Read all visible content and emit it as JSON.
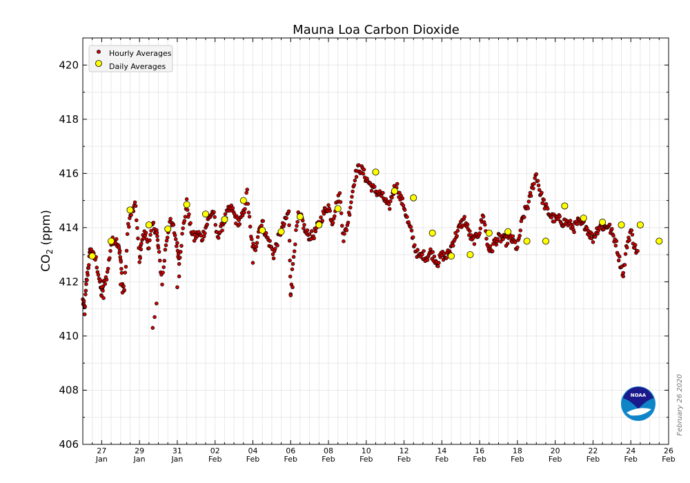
{
  "chart_data": {
    "type": "scatter",
    "title": "Mauna Loa Carbon Dioxide",
    "ylabel_main": "CO",
    "ylabel_sub": "2",
    "ylabel_unit": " (ppm)",
    "ylim": [
      406,
      421
    ],
    "yticks": [
      "406",
      "408",
      "410",
      "412",
      "414",
      "416",
      "418",
      "420"
    ],
    "xlim": [
      0,
      31
    ],
    "xticks": [
      {
        "x": 1,
        "day": "27",
        "month": "Jan"
      },
      {
        "x": 3,
        "day": "29",
        "month": "Jan"
      },
      {
        "x": 5,
        "day": "31",
        "month": "Jan"
      },
      {
        "x": 7,
        "day": "02",
        "month": "Feb"
      },
      {
        "x": 9,
        "day": "04",
        "month": "Feb"
      },
      {
        "x": 11,
        "day": "06",
        "month": "Feb"
      },
      {
        "x": 13,
        "day": "08",
        "month": "Feb"
      },
      {
        "x": 15,
        "day": "10",
        "month": "Feb"
      },
      {
        "x": 17,
        "day": "12",
        "month": "Feb"
      },
      {
        "x": 19,
        "day": "14",
        "month": "Feb"
      },
      {
        "x": 21,
        "day": "16",
        "month": "Feb"
      },
      {
        "x": 23,
        "day": "18",
        "month": "Feb"
      },
      {
        "x": 25,
        "day": "20",
        "month": "Feb"
      },
      {
        "x": 27,
        "day": "22",
        "month": "Feb"
      },
      {
        "x": 29,
        "day": "24",
        "month": "Feb"
      },
      {
        "x": 31,
        "day": "26",
        "month": "Feb"
      }
    ],
    "grid": true,
    "legend_position": "top-left",
    "date_stamp": "February 26 2020",
    "logo_text": "NOAA",
    "colors": {
      "hourly_fill": "#cc0000",
      "daily_fill": "#ffff00",
      "marker_edge": "#000000",
      "grid": "#e8e8e8",
      "logo_outer": "#0f85c7",
      "logo_inner": "#1a1a8c"
    },
    "series": [
      {
        "name": "Hourly Averages",
        "key_points": [
          [
            0.0,
            411.3
          ],
          [
            0.1,
            411.0
          ],
          [
            0.2,
            412.0
          ],
          [
            0.3,
            412.6
          ],
          [
            0.4,
            413.2
          ],
          [
            0.5,
            413.0
          ],
          [
            0.7,
            412.8
          ],
          [
            0.9,
            412.0
          ],
          [
            1.0,
            411.5
          ],
          [
            1.1,
            411.9
          ],
          [
            1.3,
            412.3
          ],
          [
            1.5,
            413.4
          ],
          [
            1.7,
            413.6
          ],
          [
            1.9,
            413.4
          ],
          [
            2.0,
            412.8
          ],
          [
            2.1,
            411.9
          ],
          [
            2.2,
            411.7
          ],
          [
            2.4,
            414.1
          ],
          [
            2.6,
            414.6
          ],
          [
            2.8,
            414.8
          ],
          [
            3.0,
            412.7
          ],
          [
            3.1,
            413.5
          ],
          [
            3.3,
            413.8
          ],
          [
            3.5,
            413.3
          ],
          [
            3.7,
            414.1
          ],
          [
            3.9,
            413.9
          ],
          [
            4.0,
            413.2
          ],
          [
            4.2,
            412.0
          ],
          [
            4.4,
            413.4
          ],
          [
            4.6,
            414.2
          ],
          [
            4.8,
            414.0
          ],
          [
            5.0,
            413.3
          ],
          [
            5.1,
            412.8
          ],
          [
            5.3,
            413.9
          ],
          [
            5.5,
            414.9
          ],
          [
            5.7,
            414.0
          ],
          [
            5.9,
            413.6
          ],
          [
            6.1,
            413.8
          ],
          [
            6.3,
            413.6
          ],
          [
            6.5,
            414.0
          ],
          [
            6.7,
            414.4
          ],
          [
            6.9,
            414.6
          ],
          [
            7.1,
            413.7
          ],
          [
            7.3,
            413.9
          ],
          [
            7.5,
            414.3
          ],
          [
            7.7,
            414.6
          ],
          [
            7.9,
            414.7
          ],
          [
            8.1,
            414.3
          ],
          [
            8.3,
            414.2
          ],
          [
            8.5,
            414.5
          ],
          [
            8.7,
            415.3
          ],
          [
            8.9,
            413.6
          ],
          [
            9.1,
            413.1
          ],
          [
            9.3,
            413.9
          ],
          [
            9.5,
            414.2
          ],
          [
            9.7,
            413.7
          ],
          [
            9.9,
            413.4
          ],
          [
            10.1,
            413.0
          ],
          [
            10.3,
            413.5
          ],
          [
            10.5,
            413.9
          ],
          [
            10.7,
            414.2
          ],
          [
            10.9,
            414.6
          ],
          [
            11.0,
            411.7
          ],
          [
            11.2,
            413.3
          ],
          [
            11.4,
            414.4
          ],
          [
            11.6,
            414.3
          ],
          [
            11.8,
            413.8
          ],
          [
            12.0,
            413.7
          ],
          [
            12.2,
            413.7
          ],
          [
            12.4,
            414.0
          ],
          [
            12.6,
            414.3
          ],
          [
            12.8,
            414.6
          ],
          [
            13.0,
            414.8
          ],
          [
            13.2,
            414.2
          ],
          [
            13.4,
            414.8
          ],
          [
            13.6,
            415.2
          ],
          [
            13.8,
            413.6
          ],
          [
            14.0,
            414.1
          ],
          [
            14.2,
            415.0
          ],
          [
            14.4,
            415.9
          ],
          [
            14.6,
            416.2
          ],
          [
            14.8,
            416.1
          ],
          [
            15.0,
            415.8
          ],
          [
            15.2,
            415.6
          ],
          [
            15.4,
            415.4
          ],
          [
            15.6,
            415.3
          ],
          [
            15.8,
            415.2
          ],
          [
            16.0,
            415.0
          ],
          [
            16.2,
            414.7
          ],
          [
            16.4,
            415.3
          ],
          [
            16.6,
            415.6
          ],
          [
            16.8,
            415.1
          ],
          [
            17.0,
            414.8
          ],
          [
            17.2,
            414.2
          ],
          [
            17.4,
            413.8
          ],
          [
            17.6,
            413.2
          ],
          [
            17.8,
            412.9
          ],
          [
            18.0,
            413.0
          ],
          [
            18.2,
            412.9
          ],
          [
            18.4,
            413.1
          ],
          [
            18.6,
            412.9
          ],
          [
            18.8,
            412.7
          ],
          [
            19.0,
            413.0
          ],
          [
            19.2,
            412.9
          ],
          [
            19.4,
            413.1
          ],
          [
            19.6,
            413.5
          ],
          [
            19.8,
            413.8
          ],
          [
            20.0,
            414.1
          ],
          [
            20.2,
            414.3
          ],
          [
            20.4,
            413.9
          ],
          [
            20.6,
            413.5
          ],
          [
            20.8,
            413.6
          ],
          [
            21.0,
            413.9
          ],
          [
            21.2,
            414.5
          ],
          [
            21.4,
            413.4
          ],
          [
            21.6,
            413.1
          ],
          [
            21.8,
            413.5
          ],
          [
            22.0,
            413.6
          ],
          [
            22.2,
            413.6
          ],
          [
            22.4,
            413.5
          ],
          [
            22.6,
            413.6
          ],
          [
            22.8,
            413.5
          ],
          [
            23.0,
            413.2
          ],
          [
            23.2,
            414.1
          ],
          [
            23.4,
            414.6
          ],
          [
            23.6,
            414.9
          ],
          [
            23.8,
            415.5
          ],
          [
            24.0,
            416.0
          ],
          [
            24.2,
            415.3
          ],
          [
            24.4,
            414.9
          ],
          [
            24.6,
            414.6
          ],
          [
            24.8,
            414.4
          ],
          [
            25.0,
            414.3
          ],
          [
            25.2,
            414.3
          ],
          [
            25.4,
            414.2
          ],
          [
            25.6,
            414.2
          ],
          [
            25.8,
            414.1
          ],
          [
            26.0,
            414.0
          ],
          [
            26.2,
            414.2
          ],
          [
            26.4,
            414.1
          ],
          [
            26.6,
            414.1
          ],
          [
            26.8,
            413.8
          ],
          [
            27.0,
            413.6
          ],
          [
            27.2,
            413.9
          ],
          [
            27.4,
            414.1
          ],
          [
            27.6,
            414.0
          ],
          [
            27.8,
            414.1
          ],
          [
            28.0,
            413.8
          ],
          [
            28.2,
            413.5
          ],
          [
            28.4,
            412.8
          ],
          [
            28.6,
            412.3
          ],
          [
            28.8,
            413.4
          ],
          [
            29.0,
            413.9
          ],
          [
            29.2,
            413.3
          ],
          [
            29.4,
            413.0
          ]
        ],
        "notable_low_points": [
          [
            3.7,
            410.3
          ],
          [
            3.8,
            410.7
          ],
          [
            3.9,
            411.2
          ],
          [
            5.0,
            411.8
          ],
          [
            5.1,
            412.2
          ],
          [
            11.0,
            411.5
          ],
          [
            11.1,
            411.8
          ],
          [
            9.0,
            412.7
          ],
          [
            2.1,
            411.6
          ],
          [
            2.0,
            411.9
          ],
          [
            1.1,
            411.4
          ],
          [
            1.0,
            411.8
          ],
          [
            0.1,
            410.8
          ],
          [
            28.6,
            412.2
          ]
        ]
      },
      {
        "name": "Daily Averages",
        "points": [
          [
            0.5,
            412.95
          ],
          [
            1.5,
            413.5
          ],
          [
            2.5,
            414.65
          ],
          [
            3.5,
            414.1
          ],
          [
            4.5,
            413.95
          ],
          [
            5.5,
            414.85
          ],
          [
            6.5,
            414.5
          ],
          [
            7.5,
            414.3
          ],
          [
            8.5,
            415.0
          ],
          [
            9.5,
            413.9
          ],
          [
            10.5,
            413.85
          ],
          [
            11.5,
            414.4
          ],
          [
            12.5,
            414.1
          ],
          [
            13.5,
            414.7
          ],
          [
            15.5,
            416.05
          ],
          [
            16.5,
            415.35
          ],
          [
            17.5,
            415.1
          ],
          [
            18.5,
            413.8
          ],
          [
            19.5,
            412.95
          ],
          [
            20.5,
            413.0
          ],
          [
            21.5,
            413.8
          ],
          [
            22.5,
            413.85
          ],
          [
            23.5,
            413.5
          ],
          [
            24.5,
            413.5
          ],
          [
            25.5,
            414.8
          ],
          [
            26.5,
            414.35
          ],
          [
            27.5,
            414.2
          ],
          [
            28.5,
            414.1
          ],
          [
            29.5,
            414.1
          ],
          [
            30.5,
            413.5
          ]
        ]
      }
    ]
  }
}
